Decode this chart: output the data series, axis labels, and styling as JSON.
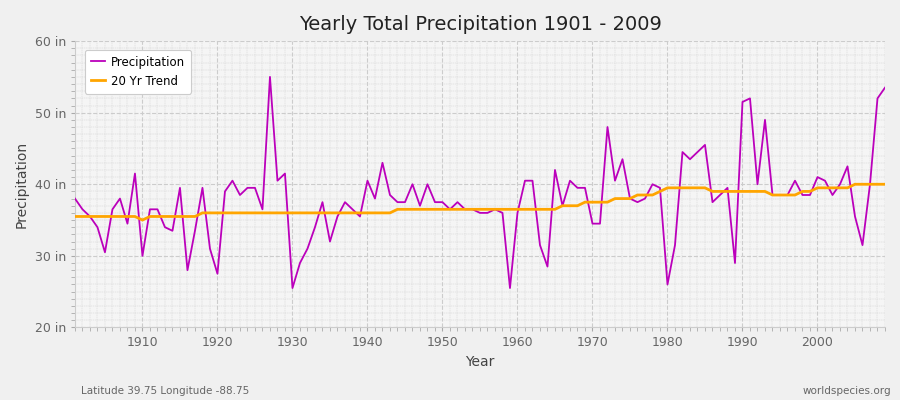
{
  "title": "Yearly Total Precipitation 1901 - 2009",
  "xlabel": "Year",
  "ylabel": "Precipitation",
  "x_label_bottom_left": "Latitude 39.75 Longitude -88.75",
  "x_label_bottom_right": "worldspecies.org",
  "ylim": [
    20,
    60
  ],
  "xlim": [
    1901,
    2009
  ],
  "yticks": [
    20,
    30,
    40,
    50,
    60
  ],
  "ytick_labels": [
    "20 in",
    "30 in",
    "40 in",
    "50 in",
    "60 in"
  ],
  "xticks": [
    1910,
    1920,
    1930,
    1940,
    1950,
    1960,
    1970,
    1980,
    1990,
    2000
  ],
  "precip_color": "#bb00bb",
  "trend_color": "#ffa500",
  "fig_bg_color": "#f0f0f0",
  "plot_bg_color": "#f5f5f5",
  "grid_color": "#cccccc",
  "years": [
    1901,
    1902,
    1903,
    1904,
    1905,
    1906,
    1907,
    1908,
    1909,
    1910,
    1911,
    1912,
    1913,
    1914,
    1915,
    1916,
    1917,
    1918,
    1919,
    1920,
    1921,
    1922,
    1923,
    1924,
    1925,
    1926,
    1927,
    1928,
    1929,
    1930,
    1931,
    1932,
    1933,
    1934,
    1935,
    1936,
    1937,
    1938,
    1939,
    1940,
    1941,
    1942,
    1943,
    1944,
    1945,
    1946,
    1947,
    1948,
    1949,
    1950,
    1951,
    1952,
    1953,
    1954,
    1955,
    1956,
    1957,
    1958,
    1959,
    1960,
    1961,
    1962,
    1963,
    1964,
    1965,
    1966,
    1967,
    1968,
    1969,
    1970,
    1971,
    1972,
    1973,
    1974,
    1975,
    1976,
    1977,
    1978,
    1979,
    1980,
    1981,
    1982,
    1983,
    1984,
    1985,
    1986,
    1987,
    1988,
    1989,
    1990,
    1991,
    1992,
    1993,
    1994,
    1995,
    1996,
    1997,
    1998,
    1999,
    2000,
    2001,
    2002,
    2003,
    2004,
    2005,
    2006,
    2007,
    2008,
    2009
  ],
  "precip": [
    38.0,
    36.5,
    35.5,
    34.0,
    30.5,
    36.5,
    38.0,
    34.5,
    41.5,
    30.0,
    36.5,
    36.5,
    34.0,
    33.5,
    39.5,
    28.0,
    33.5,
    39.5,
    31.0,
    27.5,
    39.0,
    40.5,
    38.5,
    39.5,
    39.5,
    36.5,
    55.0,
    40.5,
    41.5,
    25.5,
    29.0,
    31.0,
    34.0,
    37.5,
    32.0,
    35.5,
    37.5,
    36.5,
    35.5,
    40.5,
    38.0,
    43.0,
    38.5,
    37.5,
    37.5,
    40.0,
    37.0,
    40.0,
    37.5,
    37.5,
    36.5,
    37.5,
    36.5,
    36.5,
    36.0,
    36.0,
    36.5,
    36.0,
    25.5,
    36.0,
    40.5,
    40.5,
    31.5,
    28.5,
    42.0,
    37.0,
    40.5,
    39.5,
    39.5,
    34.5,
    34.5,
    48.0,
    40.5,
    43.5,
    38.0,
    37.5,
    38.0,
    40.0,
    39.5,
    26.0,
    31.5,
    44.5,
    43.5,
    44.5,
    45.5,
    37.5,
    38.5,
    39.5,
    29.0,
    51.5,
    52.0,
    40.0,
    49.0,
    38.5,
    38.5,
    38.5,
    40.5,
    38.5,
    38.5,
    41.0,
    40.5,
    38.5,
    40.0,
    42.5,
    35.5,
    31.5,
    40.0,
    52.0,
    53.5
  ],
  "trend": [
    35.5,
    35.5,
    35.5,
    35.5,
    35.5,
    35.5,
    35.5,
    35.5,
    35.5,
    35.0,
    35.5,
    35.5,
    35.5,
    35.5,
    35.5,
    35.5,
    35.5,
    36.0,
    36.0,
    36.0,
    36.0,
    36.0,
    36.0,
    36.0,
    36.0,
    36.0,
    36.0,
    36.0,
    36.0,
    36.0,
    36.0,
    36.0,
    36.0,
    36.0,
    36.0,
    36.0,
    36.0,
    36.0,
    36.0,
    36.0,
    36.0,
    36.0,
    36.0,
    36.5,
    36.5,
    36.5,
    36.5,
    36.5,
    36.5,
    36.5,
    36.5,
    36.5,
    36.5,
    36.5,
    36.5,
    36.5,
    36.5,
    36.5,
    36.5,
    36.5,
    36.5,
    36.5,
    36.5,
    36.5,
    36.5,
    37.0,
    37.0,
    37.0,
    37.5,
    37.5,
    37.5,
    37.5,
    38.0,
    38.0,
    38.0,
    38.5,
    38.5,
    38.5,
    39.0,
    39.5,
    39.5,
    39.5,
    39.5,
    39.5,
    39.5,
    39.0,
    39.0,
    39.0,
    39.0,
    39.0,
    39.0,
    39.0,
    39.0,
    38.5,
    38.5,
    38.5,
    38.5,
    39.0,
    39.0,
    39.5,
    39.5,
    39.5,
    39.5,
    39.5,
    40.0,
    40.0,
    40.0,
    40.0,
    40.0
  ]
}
